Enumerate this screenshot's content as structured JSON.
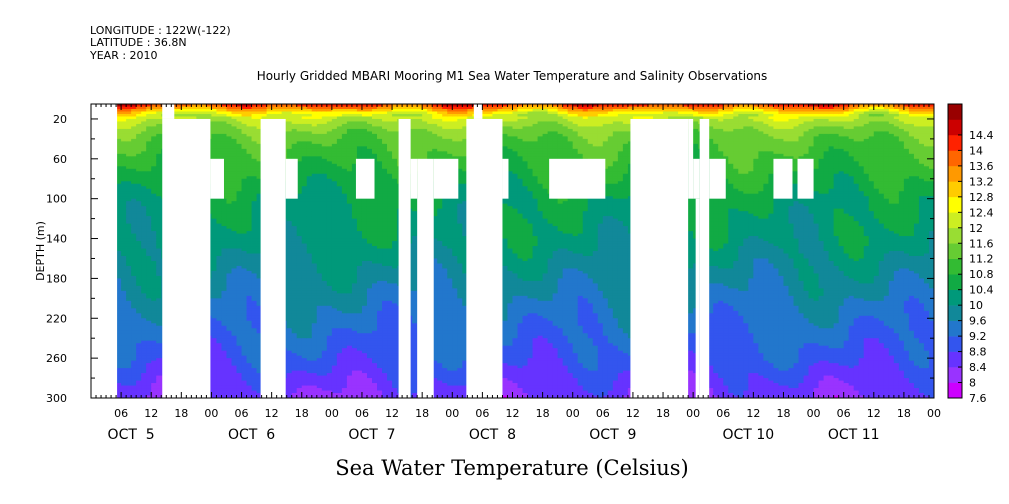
{
  "header": {
    "longitude": "LONGITUDE : 122W(-122)",
    "latitude": "LATITUDE : 36.8N",
    "year": "YEAR : 2010"
  },
  "chart_data": {
    "type": "heatmap",
    "title": "Hourly Gridded MBARI Mooring M1 Sea Water Temperature and Salinity Observations",
    "ylabel": "DEPTH (m)",
    "xlabel": "Sea Water Temperature (Celsius)",
    "x_range_hours": [
      0,
      168
    ],
    "ylim": [
      300,
      5
    ],
    "y_ticks": [
      20,
      60,
      100,
      140,
      180,
      220,
      260,
      300
    ],
    "hour_ticks": [
      {
        "h": 6,
        "label": "06"
      },
      {
        "h": 12,
        "label": "12"
      },
      {
        "h": 18,
        "label": "18"
      },
      {
        "h": 24,
        "label": "00"
      },
      {
        "h": 30,
        "label": "06"
      },
      {
        "h": 36,
        "label": "12"
      },
      {
        "h": 42,
        "label": "18"
      },
      {
        "h": 48,
        "label": "00"
      },
      {
        "h": 54,
        "label": "06"
      },
      {
        "h": 60,
        "label": "12"
      },
      {
        "h": 66,
        "label": "18"
      },
      {
        "h": 72,
        "label": "00"
      },
      {
        "h": 78,
        "label": "06"
      },
      {
        "h": 84,
        "label": "12"
      },
      {
        "h": 90,
        "label": "18"
      },
      {
        "h": 96,
        "label": "00"
      },
      {
        "h": 102,
        "label": "06"
      },
      {
        "h": 108,
        "label": "12"
      },
      {
        "h": 114,
        "label": "18"
      },
      {
        "h": 120,
        "label": "00"
      },
      {
        "h": 126,
        "label": "06"
      },
      {
        "h": 132,
        "label": "12"
      },
      {
        "h": 138,
        "label": "18"
      },
      {
        "h": 144,
        "label": "00"
      },
      {
        "h": 150,
        "label": "06"
      },
      {
        "h": 156,
        "label": "12"
      },
      {
        "h": 162,
        "label": "18"
      },
      {
        "h": 168,
        "label": "00"
      }
    ],
    "day_labels": [
      {
        "h": 8,
        "label": "OCT  5"
      },
      {
        "h": 32,
        "label": "OCT  6"
      },
      {
        "h": 56,
        "label": "OCT  7"
      },
      {
        "h": 80,
        "label": "OCT  8"
      },
      {
        "h": 104,
        "label": "OCT  9"
      },
      {
        "h": 131,
        "label": "OCT 10"
      },
      {
        "h": 152,
        "label": "OCT 11"
      }
    ],
    "colorbar": {
      "levels": [
        "7.6",
        "8",
        "8.4",
        "8.8",
        "9.2",
        "9.6",
        "10",
        "10.4",
        "10.8",
        "11.2",
        "11.6",
        "12",
        "12.4",
        "12.8",
        "13.2",
        "13.6",
        "14",
        "14.4"
      ],
      "colors": [
        "#cc00ff",
        "#9933ff",
        "#6633ff",
        "#3355ee",
        "#2277cc",
        "#118899",
        "#00997a",
        "#11aa44",
        "#33bb33",
        "#66cc33",
        "#99dd33",
        "#ccee22",
        "#ffff00",
        "#ffcc00",
        "#ff9900",
        "#ff6600",
        "#ff2200",
        "#cc0000",
        "#990000"
      ]
    },
    "profile": [
      {
        "depth": 5,
        "temp": 13.9
      },
      {
        "depth": 10,
        "temp": 12.9
      },
      {
        "depth": 15,
        "temp": 12.0
      },
      {
        "depth": 20,
        "temp": 11.7
      },
      {
        "depth": 30,
        "temp": 11.2
      },
      {
        "depth": 40,
        "temp": 10.9
      },
      {
        "depth": 60,
        "temp": 10.6
      },
      {
        "depth": 80,
        "temp": 10.3
      },
      {
        "depth": 100,
        "temp": 10.0
      },
      {
        "depth": 140,
        "temp": 9.8
      },
      {
        "depth": 180,
        "temp": 9.4
      },
      {
        "depth": 220,
        "temp": 9.0
      },
      {
        "depth": 260,
        "temp": 8.6
      },
      {
        "depth": 300,
        "temp": 8.0
      }
    ],
    "missing_data": [
      {
        "t0": 0,
        "t1": 5.2,
        "d0": 5,
        "d1": 300
      },
      {
        "t0": 14.2,
        "t1": 16.6,
        "d0": 5,
        "d1": 20
      },
      {
        "t0": 14.2,
        "t1": 23.8,
        "d0": 20,
        "d1": 300
      },
      {
        "t0": 23.8,
        "t1": 26.5,
        "d0": 60,
        "d1": 100
      },
      {
        "t0": 33.8,
        "t1": 38.8,
        "d0": 20,
        "d1": 300
      },
      {
        "t0": 38.8,
        "t1": 41.2,
        "d0": 60,
        "d1": 100
      },
      {
        "t0": 52.8,
        "t1": 56.5,
        "d0": 60,
        "d1": 100
      },
      {
        "t0": 61.3,
        "t1": 63.7,
        "d0": 20,
        "d1": 300
      },
      {
        "t0": 63.7,
        "t1": 65.0,
        "d0": 60,
        "d1": 100
      },
      {
        "t0": 65.0,
        "t1": 68.3,
        "d0": 60,
        "d1": 300
      },
      {
        "t0": 68.3,
        "t1": 73.2,
        "d0": 60,
        "d1": 100
      },
      {
        "t0": 76.3,
        "t1": 78.0,
        "d0": 5,
        "d1": 20
      },
      {
        "t0": 74.8,
        "t1": 82.0,
        "d0": 20,
        "d1": 300
      },
      {
        "t0": 82.0,
        "t1": 83.2,
        "d0": 60,
        "d1": 100
      },
      {
        "t0": 91.3,
        "t1": 102.5,
        "d0": 60,
        "d1": 100
      },
      {
        "t0": 107.5,
        "t1": 119.0,
        "d0": 20,
        "d1": 300
      },
      {
        "t0": 119.0,
        "t1": 120.0,
        "d0": 20,
        "d1": 100
      },
      {
        "t0": 120.0,
        "t1": 121.3,
        "d0": 60,
        "d1": 100
      },
      {
        "t0": 120.5,
        "t1": 121.3,
        "d0": 100,
        "d1": 300
      },
      {
        "t0": 121.3,
        "t1": 123.2,
        "d0": 20,
        "d1": 300
      },
      {
        "t0": 123.2,
        "t1": 126.5,
        "d0": 60,
        "d1": 100
      },
      {
        "t0": 136.0,
        "t1": 139.8,
        "d0": 60,
        "d1": 100
      },
      {
        "t0": 140.8,
        "t1": 144.0,
        "d0": 60,
        "d1": 100
      }
    ]
  }
}
